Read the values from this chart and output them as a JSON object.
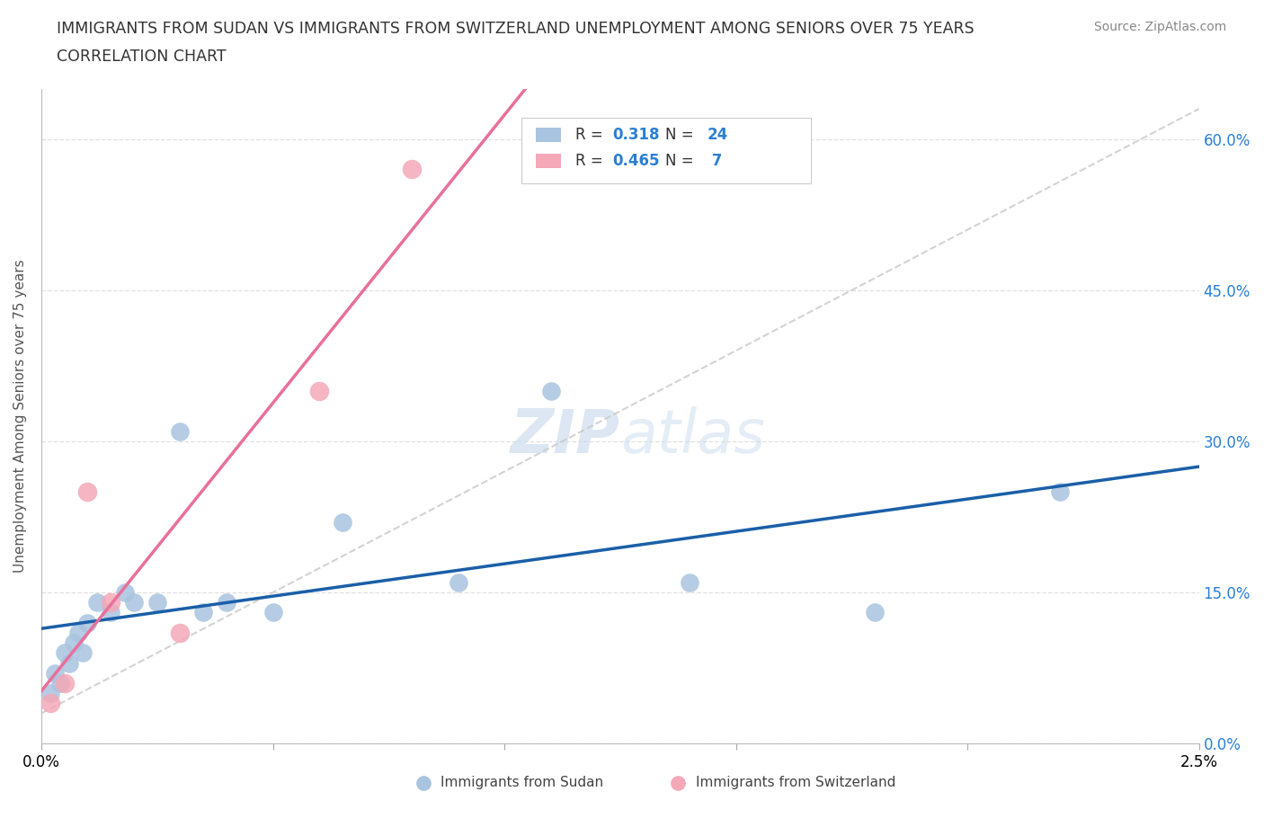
{
  "title_line1": "IMMIGRANTS FROM SUDAN VS IMMIGRANTS FROM SWITZERLAND UNEMPLOYMENT AMONG SENIORS OVER 75 YEARS",
  "title_line2": "CORRELATION CHART",
  "source_text": "Source: ZipAtlas.com",
  "ylabel": "Unemployment Among Seniors over 75 years",
  "xlim": [
    0.0,
    0.025
  ],
  "ylim": [
    0.0,
    0.65
  ],
  "yticks": [
    0.0,
    0.15,
    0.3,
    0.45,
    0.6
  ],
  "ytick_labels": [
    "0.0%",
    "15.0%",
    "30.0%",
    "45.0%",
    "60.0%"
  ],
  "xticks": [
    0.0,
    0.005,
    0.01,
    0.015,
    0.02,
    0.025
  ],
  "xtick_labels": [
    "0.0%",
    "",
    "",
    "",
    "",
    "2.5%"
  ],
  "sudan_x": [
    0.0002,
    0.0003,
    0.0004,
    0.0005,
    0.0006,
    0.0007,
    0.0008,
    0.0009,
    0.001,
    0.0012,
    0.0015,
    0.0018,
    0.002,
    0.0025,
    0.003,
    0.0035,
    0.004,
    0.005,
    0.0065,
    0.009,
    0.011,
    0.014,
    0.018,
    0.022
  ],
  "sudan_y": [
    0.05,
    0.07,
    0.06,
    0.09,
    0.08,
    0.1,
    0.11,
    0.09,
    0.12,
    0.14,
    0.13,
    0.15,
    0.14,
    0.14,
    0.31,
    0.13,
    0.14,
    0.13,
    0.22,
    0.16,
    0.35,
    0.16,
    0.13,
    0.25
  ],
  "switzerland_x": [
    0.0002,
    0.0005,
    0.001,
    0.0015,
    0.003,
    0.006,
    0.008
  ],
  "switzerland_y": [
    0.04,
    0.06,
    0.25,
    0.14,
    0.11,
    0.35,
    0.57
  ],
  "sudan_r": 0.318,
  "sudan_n": 24,
  "swiss_r": 0.465,
  "swiss_n": 7,
  "sudan_color": "#a8c4e0",
  "swiss_color": "#f4a8b8",
  "sudan_line_color": "#1a5fa8",
  "swiss_line_color": "#e8709a",
  "diagonal_color": "#c8c8c8",
  "watermark_color": "#c5d8ec",
  "background_color": "#ffffff",
  "grid_color": "#e0e0e0",
  "legend_r_color": "#2b7fd4",
  "legend_n_color": "#2b7fd4"
}
